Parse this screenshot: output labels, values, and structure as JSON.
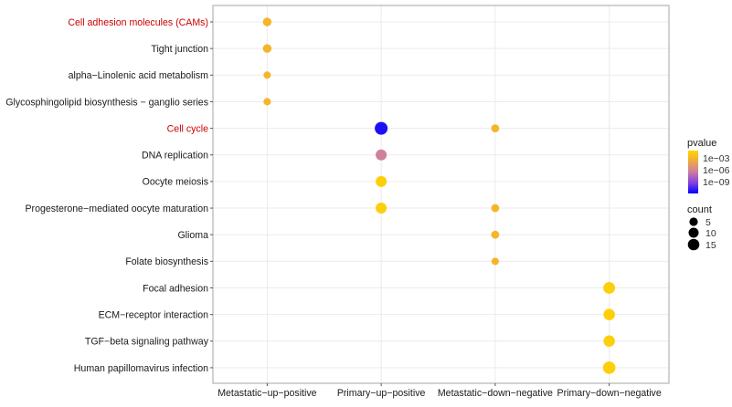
{
  "chart_data": {
    "type": "scatter",
    "subtype": "dot-plot",
    "title": "",
    "xlabel": "",
    "ylabel": "",
    "grid": true,
    "legend_position": "right",
    "categories_x": [
      "Metastatic−up−positive",
      "Primary−up−positive",
      "Metastatic−down−negative",
      "Primary−down−negative"
    ],
    "categories_y": [
      {
        "label": "Cell adhesion molecules (CAMs)",
        "highlight": true
      },
      {
        "label": "Tight junction",
        "highlight": false
      },
      {
        "label": "alpha−Linolenic acid metabolism",
        "highlight": false
      },
      {
        "label": "Glycosphingolipid biosynthesis − ganglio series",
        "highlight": false
      },
      {
        "label": "Cell cycle",
        "highlight": true
      },
      {
        "label": "DNA replication",
        "highlight": false
      },
      {
        "label": "Oocyte meiosis",
        "highlight": false
      },
      {
        "label": "Progesterone−mediated oocyte maturation",
        "highlight": false
      },
      {
        "label": "Glioma",
        "highlight": false
      },
      {
        "label": "Folate biosynthesis",
        "highlight": false
      },
      {
        "label": "Focal adhesion",
        "highlight": false
      },
      {
        "label": "ECM−receptor interaction",
        "highlight": false
      },
      {
        "label": "TGF−beta signaling pathway",
        "highlight": false
      },
      {
        "label": "Human papillomavirus infection",
        "highlight": false
      }
    ],
    "points": [
      {
        "x": "Metastatic−up−positive",
        "y": "Cell adhesion molecules (CAMs)",
        "count": 5,
        "pvalue": 0.001
      },
      {
        "x": "Metastatic−up−positive",
        "y": "Tight junction",
        "count": 5,
        "pvalue": 0.001
      },
      {
        "x": "Metastatic−up−positive",
        "y": "alpha−Linolenic acid metabolism",
        "count": 3,
        "pvalue": 0.001
      },
      {
        "x": "Metastatic−up−positive",
        "y": "Glycosphingolipid biosynthesis − ganglio series",
        "count": 3,
        "pvalue": 0.001
      },
      {
        "x": "Primary−up−positive",
        "y": "Cell cycle",
        "count": 15,
        "pvalue": 3e-11
      },
      {
        "x": "Primary−up−positive",
        "y": "DNA replication",
        "count": 10,
        "pvalue": 1e-06
      },
      {
        "x": "Primary−up−positive",
        "y": "Oocyte meiosis",
        "count": 10,
        "pvalue": 0.01
      },
      {
        "x": "Primary−up−positive",
        "y": "Progesterone−mediated oocyte maturation",
        "count": 10,
        "pvalue": 0.01
      },
      {
        "x": "Metastatic−down−negative",
        "y": "Cell cycle",
        "count": 4,
        "pvalue": 0.001
      },
      {
        "x": "Metastatic−down−negative",
        "y": "Progesterone−mediated oocyte maturation",
        "count": 4,
        "pvalue": 0.001
      },
      {
        "x": "Metastatic−down−negative",
        "y": "Glioma",
        "count": 4,
        "pvalue": 0.001
      },
      {
        "x": "Metastatic−down−negative",
        "y": "Folate biosynthesis",
        "count": 3,
        "pvalue": 0.001
      },
      {
        "x": "Primary−down−negative",
        "y": "Focal adhesion",
        "count": 12,
        "pvalue": 0.01
      },
      {
        "x": "Primary−down−negative",
        "y": "ECM−receptor interaction",
        "count": 11,
        "pvalue": 0.01
      },
      {
        "x": "Primary−down−negative",
        "y": "TGF−beta signaling pathway",
        "count": 11,
        "pvalue": 0.01
      },
      {
        "x": "Primary−down−negative",
        "y": "Human papillomavirus infection",
        "count": 14,
        "pvalue": 0.01
      }
    ],
    "color_legend": {
      "title": "pvalue",
      "scale": "log",
      "ticks": [
        "1e−03",
        "1e−06",
        "1e−09"
      ],
      "tick_values": [
        0.001,
        1e-06,
        1e-09
      ],
      "low_color": "#0000FF",
      "high_color": "#FFD700"
    },
    "size_legend": {
      "title": "count",
      "values": [
        5,
        10,
        15
      ],
      "labels": [
        "5",
        "10",
        "15"
      ]
    },
    "highlight_color": "#CC0000",
    "text_color": "#1a1a1a"
  }
}
